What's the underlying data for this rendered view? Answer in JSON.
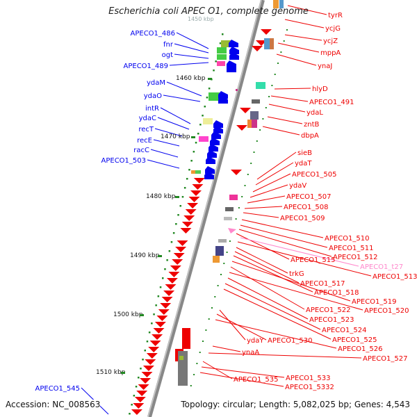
{
  "title": "Escherichia coli APEC O1, complete genome",
  "accession": "Accession: NC_008563",
  "topology": "Topology: circular; Length: 5,082,025 bp; Genes: 4,543",
  "ruler_partial": "1450 kbp",
  "ruler_labels": [
    "1460 kbp",
    "1470 kbp",
    "1480 kbp",
    "1490 kbp",
    "1500 kbp",
    "1510 kbp"
  ],
  "minus_strand_genes": [
    "APECO1_486",
    "fnr",
    "ogt",
    "APECO1_489",
    "ydaM",
    "ydaO",
    "intR",
    "ydaC",
    "recT",
    "recE",
    "racC",
    "APECO1_503",
    "APECO1_545"
  ],
  "plus_strand_genes": [
    "tyrR",
    "ycjG",
    "ycjZ",
    "mppA",
    "ynaJ",
    "hlyD",
    "APECO1_491",
    "ydaL",
    "zntB",
    "dbpA",
    "sieB",
    "ydaT",
    "APECO1_505",
    "ydaV",
    "APECO1_507",
    "APECO1_508",
    "APECO1_509",
    "APECO1_510",
    "APECO1_511",
    "APECO1_512",
    "APECO1_515",
    "APECO1_t27",
    "APECO1_513",
    "trkG",
    "APECO1_517",
    "APECO1_518",
    "APECO1_519",
    "APECO1_522",
    "APECO1_520",
    "APECO1_523",
    "APECO1_524",
    "APECO1_525",
    "ydaY",
    "APECO1_530",
    "APECO1_526",
    "ynaA",
    "APECO1_527",
    "APECO1_535",
    "APECO1_533",
    "APECO1_5332"
  ],
  "colors": {
    "minus_strand": "#0000ee",
    "plus_strand": "#ee0000",
    "trna": "#ff88cc",
    "backbone": "#888888",
    "ruler_tick": "#228822"
  }
}
